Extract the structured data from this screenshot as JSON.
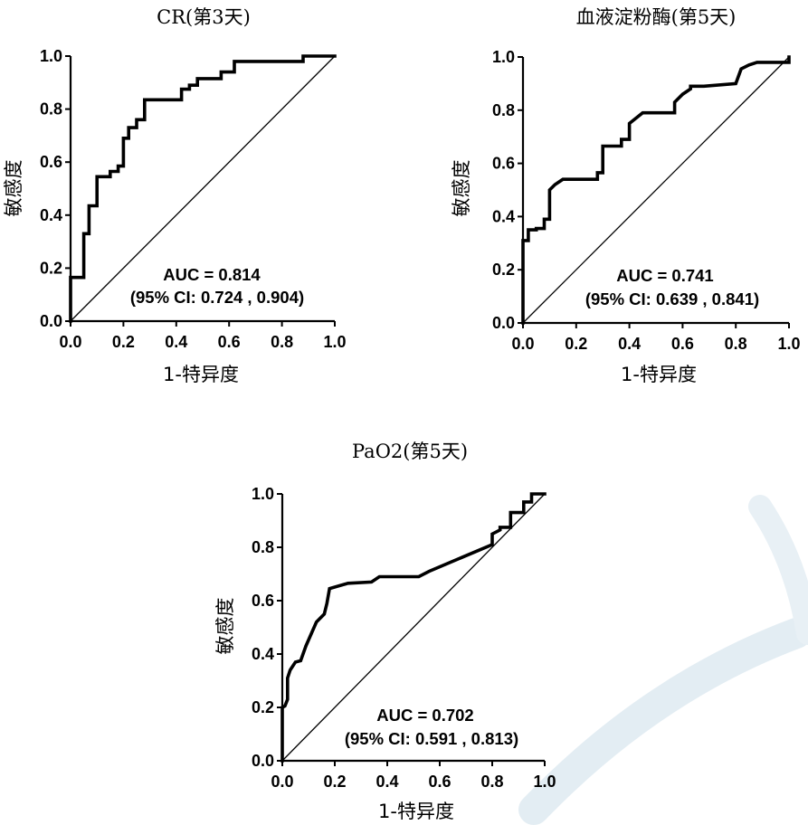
{
  "colors": {
    "curve": "#000000",
    "diagonal": "#000000",
    "axis": "#000000",
    "watermark": "#dfeaf0"
  },
  "chart_data": [
    {
      "type": "line",
      "title": "CR(第3天)",
      "xlabel": "1-特异度",
      "ylabel": "敏感度",
      "xlim": [
        0,
        1
      ],
      "ylim": [
        0,
        1
      ],
      "xticks": [
        "0.0",
        "0.2",
        "0.4",
        "0.6",
        "0.8",
        "1.0"
      ],
      "yticks": [
        "0.0",
        "0.2",
        "0.4",
        "0.6",
        "0.8",
        "1.0"
      ],
      "annotation": [
        "AUC = 0.814",
        "(95% CI: 0.724 , 0.904)"
      ],
      "series": [
        {
          "name": "",
          "style": "step",
          "x": [
            0,
            0,
            0.05,
            0.05,
            0.07,
            0.07,
            0.1,
            0.1,
            0.15,
            0.15,
            0.18,
            0.18,
            0.2,
            0.2,
            0.22,
            0.22,
            0.25,
            0.25,
            0.28,
            0.28,
            0.42,
            0.42,
            0.45,
            0.45,
            0.48,
            0.48,
            0.57,
            0.57,
            0.62,
            0.62,
            0.88,
            0.88,
            1.0
          ],
          "y": [
            0,
            0.165,
            0.165,
            0.33,
            0.33,
            0.435,
            0.435,
            0.545,
            0.545,
            0.565,
            0.565,
            0.585,
            0.585,
            0.69,
            0.69,
            0.73,
            0.73,
            0.76,
            0.76,
            0.835,
            0.835,
            0.875,
            0.875,
            0.89,
            0.89,
            0.915,
            0.915,
            0.94,
            0.94,
            0.98,
            0.98,
            1.0,
            1.0
          ]
        }
      ],
      "diagonal": true
    },
    {
      "type": "line",
      "title": "血液淀粉酶(第5天)",
      "xlabel": "1-特异度",
      "ylabel": "敏感度",
      "xlim": [
        0,
        1
      ],
      "ylim": [
        0,
        1
      ],
      "xticks": [
        "0.0",
        "0.2",
        "0.4",
        "0.6",
        "0.8",
        "1.0"
      ],
      "yticks": [
        "0.0",
        "0.2",
        "0.4",
        "0.6",
        "0.8",
        "1.0"
      ],
      "annotation": [
        "AUC = 0.741",
        "(95% CI: 0.639 , 0.841)"
      ],
      "series": [
        {
          "name": "",
          "style": "step",
          "x": [
            0,
            0,
            0.02,
            0.02,
            0.05,
            0.05,
            0.08,
            0.08,
            0.1,
            0.1,
            0.12,
            0.15,
            0.28,
            0.28,
            0.3,
            0.3,
            0.33,
            0.33,
            0.37,
            0.37,
            0.4,
            0.4,
            0.45,
            0.57,
            0.57,
            0.6,
            0.63,
            0.63,
            0.68,
            0.8,
            0.82,
            0.85,
            0.88,
            1.0,
            1.0
          ],
          "y": [
            0,
            0.31,
            0.31,
            0.35,
            0.35,
            0.355,
            0.355,
            0.39,
            0.39,
            0.5,
            0.52,
            0.54,
            0.54,
            0.565,
            0.565,
            0.665,
            0.665,
            0.665,
            0.665,
            0.69,
            0.69,
            0.75,
            0.79,
            0.79,
            0.83,
            0.86,
            0.88,
            0.89,
            0.89,
            0.9,
            0.955,
            0.97,
            0.98,
            0.98,
            1.0
          ]
        }
      ],
      "diagonal": true
    },
    {
      "type": "line",
      "title": "PaO2(第5天)",
      "xlabel": "1-特异度",
      "ylabel": "敏感度",
      "xlim": [
        0,
        1
      ],
      "ylim": [
        0,
        1
      ],
      "xticks": [
        "0.0",
        "0.2",
        "0.4",
        "0.6",
        "0.8",
        "1.0"
      ],
      "yticks": [
        "0.0",
        "0.2",
        "0.4",
        "0.6",
        "0.8",
        "1.0"
      ],
      "annotation": [
        "AUC = 0.702",
        "(95% CI: 0.591 , 0.813)"
      ],
      "series": [
        {
          "name": "",
          "style": "line",
          "x": [
            0,
            0,
            0.01,
            0.02,
            0.02,
            0.03,
            0.05,
            0.07,
            0.09,
            0.13,
            0.16,
            0.17,
            0.18,
            0.25,
            0.34,
            0.37,
            0.52,
            0.56,
            0.8,
            0.8,
            0.83,
            0.83,
            0.87,
            0.87,
            0.92,
            0.92,
            0.95,
            0.95,
            1.0
          ],
          "y": [
            0,
            0.2,
            0.205,
            0.23,
            0.31,
            0.34,
            0.37,
            0.375,
            0.43,
            0.52,
            0.55,
            0.59,
            0.645,
            0.665,
            0.67,
            0.69,
            0.69,
            0.71,
            0.81,
            0.85,
            0.865,
            0.875,
            0.875,
            0.93,
            0.93,
            0.97,
            0.97,
            1.0,
            1.0
          ]
        }
      ],
      "diagonal": true
    }
  ]
}
